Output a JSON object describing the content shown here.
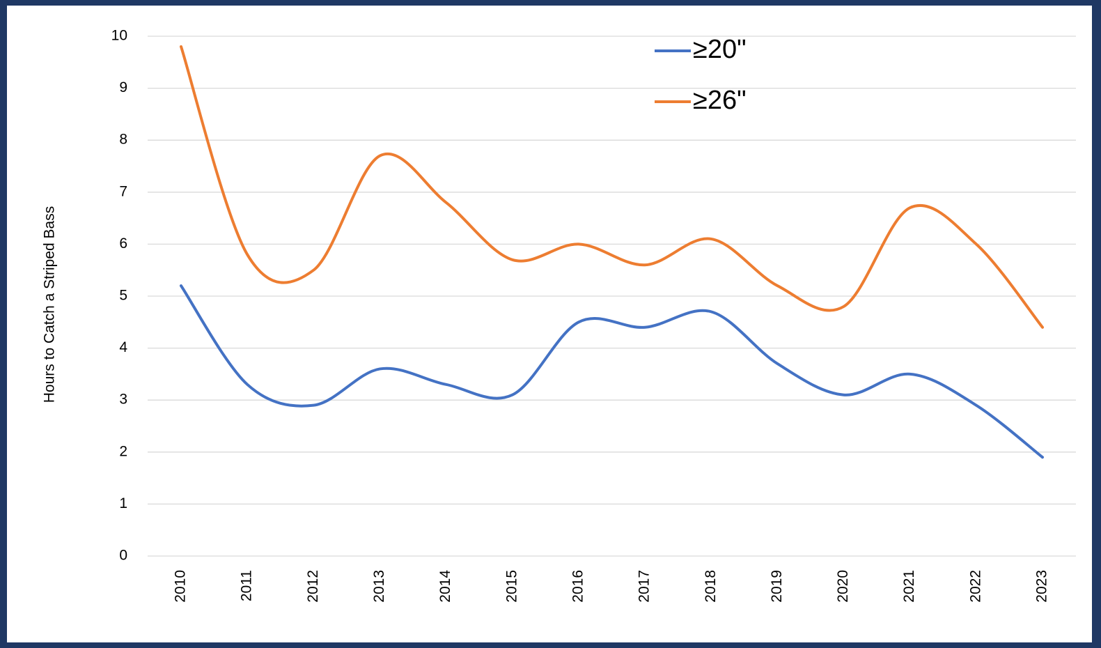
{
  "chart_data": {
    "type": "line",
    "y_label": "Hours to Catch a Striped Bass",
    "categories": [
      "2010",
      "2011",
      "2012",
      "2013",
      "2014",
      "2015",
      "2016",
      "2017",
      "2018",
      "2019",
      "2020",
      "2021",
      "2022",
      "2023"
    ],
    "series": [
      {
        "name": "≥20\"",
        "color": "#4472c4",
        "values": [
          5.2,
          3.3,
          2.9,
          3.6,
          3.3,
          3.1,
          4.5,
          4.4,
          4.7,
          3.7,
          3.1,
          3.5,
          2.9,
          1.9
        ]
      },
      {
        "name": "≥26\"",
        "color": "#ed7d31",
        "values": [
          9.8,
          5.8,
          5.5,
          7.7,
          6.8,
          5.7,
          6.0,
          5.6,
          6.1,
          5.2,
          4.8,
          6.7,
          6.0,
          4.4
        ]
      }
    ],
    "ylim": [
      0,
      10
    ],
    "yticks": [
      0,
      1,
      2,
      3,
      4,
      5,
      6,
      7,
      8,
      9,
      10
    ],
    "grid": true,
    "smooth": true,
    "legend": "top"
  }
}
